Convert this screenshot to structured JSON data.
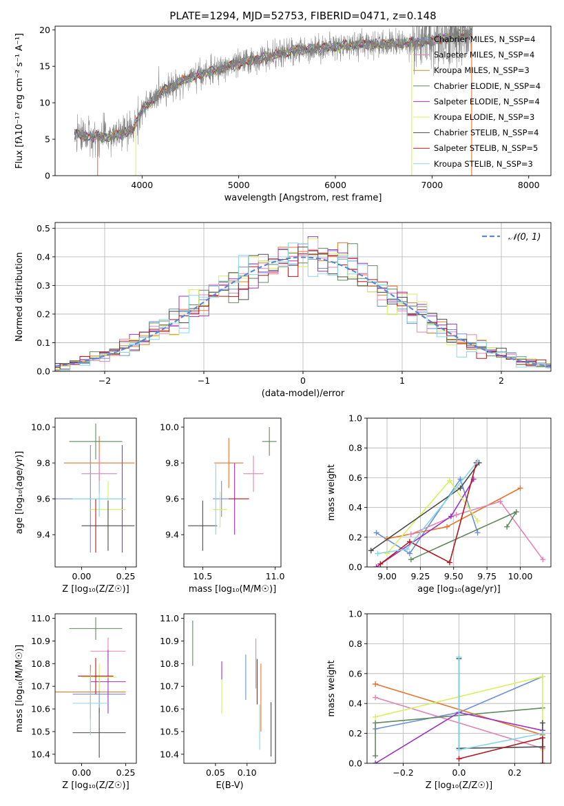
{
  "figure": {
    "title": "PLATE=1294, MJD=52753, FIBERID=0471, z=0.148"
  },
  "colors": {
    "chabrier_miles": "#6a8fd8",
    "salpeter_miles": "#e8742a",
    "kroupa_miles": "#c38a21",
    "chabrier_elodie": "#5f8a5f",
    "salpeter_elodie": "#9b30c2",
    "kroupa_elodie": "#d8ef5e",
    "chabrier_stelib": "#4a4a4a",
    "salpeter_stelib": "#b3151c",
    "kroupa_stelib": "#86d7e6",
    "pink": "#e383b5",
    "data_gray": "#808080"
  },
  "chart_data": [
    {
      "id": "spectrum",
      "type": "line",
      "xlabel": "wavelength [Angstrom, rest frame]",
      "ylabel": "Flux [fλ10⁻¹⁷ erg cm⁻² s⁻¹ A⁻¹]",
      "xlim": [
        3100,
        8230
      ],
      "ylim": [
        0,
        20.5
      ],
      "xticks": [
        4000,
        5000,
        6000,
        7000,
        8000
      ],
      "yticks": [
        0,
        5,
        10,
        15,
        20
      ],
      "legend_position": "top-right",
      "series": [
        {
          "name": "Chabrier MILES, N_SSP=4",
          "color_key": "chabrier_miles"
        },
        {
          "name": "Salpeter MILES, N_SSP=4",
          "color_key": "pink"
        },
        {
          "name": "Kroupa MILES, N_SSP=3",
          "color_key": "kroupa_miles"
        },
        {
          "name": "Chabrier ELODIE, N_SSP=4",
          "color_key": "chabrier_elodie"
        },
        {
          "name": "Salpeter ELODIE, N_SSP=4",
          "color_key": "salpeter_elodie"
        },
        {
          "name": "Kroupa ELODIE, N_SSP=3",
          "color_key": "kroupa_elodie"
        },
        {
          "name": "Chabrier STELIB, N_SSP=4",
          "color_key": "chabrier_stelib"
        },
        {
          "name": "Salpeter STELIB, N_SSP=5",
          "color_key": "salpeter_stelib"
        },
        {
          "name": "Kroupa STELIB, N_SSP=3",
          "color_key": "kroupa_stelib"
        }
      ],
      "continuum": [
        [
          3300,
          5.8
        ],
        [
          3500,
          5.3
        ],
        [
          3700,
          5.4
        ],
        [
          3900,
          6.3
        ],
        [
          4000,
          9.0
        ],
        [
          4200,
          11.5
        ],
        [
          4500,
          13.5
        ],
        [
          4800,
          14.6
        ],
        [
          5000,
          15.4
        ],
        [
          5300,
          16.3
        ],
        [
          5600,
          17.2
        ],
        [
          5900,
          17.6
        ],
        [
          6200,
          18.0
        ],
        [
          6500,
          18.1
        ],
        [
          6800,
          18.2
        ],
        [
          7000,
          18.5
        ],
        [
          7200,
          19.0
        ],
        [
          7400,
          19.5
        ]
      ],
      "model_dropouts": [
        [
          3540,
          "salpeter_miles"
        ],
        [
          3935,
          "kroupa_elodie"
        ],
        [
          6790,
          "kroupa_elodie"
        ],
        [
          7410,
          "salpeter_miles"
        ]
      ]
    },
    {
      "id": "residuals",
      "type": "line",
      "xlabel": "(data-model)/error",
      "ylabel": "Normed distribution",
      "xlim": [
        -2.5,
        2.5
      ],
      "ylim": [
        0,
        0.52
      ],
      "xticks": [
        -2,
        -1,
        0,
        1,
        2
      ],
      "yticks": [
        0.0,
        0.1,
        0.2,
        0.3,
        0.4,
        0.5
      ],
      "grid": true,
      "legend_position": "top-right",
      "reference_label": "𝒩(0, 1)"
    },
    {
      "id": "age_vs_Z",
      "type": "scatter",
      "xlabel": "Z [log₁₀(Z/Z☉)]",
      "ylabel": "age  [log₁₀(age/yr)]",
      "xlim": [
        -0.15,
        0.31
      ],
      "ylim": [
        9.22,
        10.05
      ],
      "xticks": [
        0.0,
        0.25
      ],
      "yticks": [
        9.4,
        9.6,
        9.8,
        10.0
      ],
      "points": [
        {
          "color_key": "chabrier_miles",
          "x": 0.05,
          "xerr": 0.2,
          "y": 9.6,
          "yerr": 0.3
        },
        {
          "color_key": "salpeter_miles",
          "x": 0.1,
          "xerr": 0.2,
          "y": 9.8,
          "yerr": 0.15
        },
        {
          "color_key": "chabrier_elodie",
          "x": 0.08,
          "xerr": 0.15,
          "y": 9.92,
          "yerr": 0.1
        },
        {
          "color_key": "pink",
          "x": 0.1,
          "xerr": 0.1,
          "y": 9.74,
          "yerr": 0.11
        },
        {
          "color_key": "salpeter_elodie",
          "x": 0.23,
          "xerr": 0.0,
          "y": 9.6,
          "yerr": 0.3
        },
        {
          "color_key": "kroupa_elodie",
          "x": 0.15,
          "xerr": 0.1,
          "y": 9.54,
          "yerr": 0.16
        },
        {
          "color_key": "chabrier_stelib",
          "x": 0.15,
          "xerr": 0.15,
          "y": 9.45,
          "yerr": 0.14
        },
        {
          "color_key": "salpeter_stelib",
          "x": 0.08,
          "xerr": 0.0,
          "y": 9.45,
          "yerr": 0.15
        },
        {
          "color_key": "kroupa_stelib",
          "x": 0.1,
          "xerr": 0.15,
          "y": 9.6,
          "yerr": 0.1
        }
      ]
    },
    {
      "id": "age_vs_mass",
      "type": "scatter",
      "xlabel": "mass [log₁₀(M/M☉)]",
      "ylabel": "",
      "xlim": [
        10.37,
        11.04
      ],
      "ylim": [
        9.22,
        10.05
      ],
      "xticks": [
        10.5,
        11.0
      ],
      "xticklabels": [
        "10.5",
        "11.0"
      ],
      "yticks": [
        9.4,
        9.6,
        9.8,
        10.0
      ],
      "points": [
        {
          "color_key": "chabrier_miles",
          "x": 10.63,
          "xerr": 0.06,
          "y": 9.6,
          "yerr": 0.1
        },
        {
          "color_key": "salpeter_miles",
          "x": 10.68,
          "xerr": 0.1,
          "y": 9.8,
          "yerr": 0.14
        },
        {
          "color_key": "chabrier_elodie",
          "x": 10.96,
          "xerr": 0.05,
          "y": 9.92,
          "yerr": 0.08
        },
        {
          "color_key": "pink",
          "x": 10.85,
          "xerr": 0.07,
          "y": 9.74,
          "yerr": 0.1
        },
        {
          "color_key": "salpeter_elodie",
          "x": 10.72,
          "xerr": 0.0,
          "y": 9.6,
          "yerr": 0.2
        },
        {
          "color_key": "kroupa_elodie",
          "x": 10.62,
          "xerr": 0.05,
          "y": 9.54,
          "yerr": 0.1
        },
        {
          "color_key": "chabrier_stelib",
          "x": 10.5,
          "xerr": 0.1,
          "y": 9.45,
          "yerr": 0.14
        },
        {
          "color_key": "salpeter_stelib",
          "x": 10.75,
          "xerr": 0.07,
          "y": 9.6,
          "yerr": 0.0
        },
        {
          "color_key": "kroupa_stelib",
          "x": 10.59,
          "xerr": 0.0,
          "y": 9.6,
          "yerr": 0.2
        }
      ]
    },
    {
      "id": "weight_vs_age",
      "type": "line",
      "xlabel": "age  [log₁₀(age/yr)]",
      "ylabel": "mass weight",
      "xlim": [
        8.85,
        10.23
      ],
      "ylim": [
        0,
        1.0
      ],
      "xticks": [
        9.0,
        9.25,
        9.5,
        9.75,
        10.0
      ],
      "xticklabels": [
        "9.00",
        "9.25",
        "9.50",
        "9.75",
        "10.00"
      ],
      "yticks": [
        0.0,
        0.2,
        0.4,
        0.6,
        0.8,
        1.0
      ],
      "grid": true,
      "series": [
        {
          "color_key": "chabrier_miles",
          "x": [
            8.92,
            9.17,
            9.55,
            9.68
          ],
          "y": [
            0.23,
            0.09,
            0.59,
            0.23
          ]
        },
        {
          "color_key": "salpeter_miles",
          "x": [
            9.0,
            9.45,
            10.0
          ],
          "y": [
            0.19,
            0.27,
            0.53
          ]
        },
        {
          "color_key": "pink",
          "x": [
            9.18,
            9.52,
            9.85,
            10.17
          ],
          "y": [
            0.22,
            0.35,
            0.44,
            0.05
          ]
        },
        {
          "color_key": "chabrier_elodie",
          "x": [
            9.18,
            9.97,
            9.9
          ],
          "y": [
            0.05,
            0.37,
            0.27
          ]
        },
        {
          "color_key": "salpeter_elodie",
          "x": [
            8.92,
            9.48,
            9.65
          ],
          "y": [
            0.0,
            0.34,
            0.59
          ]
        },
        {
          "color_key": "kroupa_elodie",
          "x": [
            9.0,
            9.47,
            9.68
          ],
          "y": [
            0.09,
            0.58,
            0.31
          ]
        },
        {
          "color_key": "chabrier_stelib",
          "x": [
            8.88,
            9.55,
            9.69
          ],
          "y": [
            0.11,
            0.53,
            0.7
          ]
        },
        {
          "color_key": "salpeter_stelib",
          "x": [
            8.95,
            9.17,
            9.47,
            9.67
          ],
          "y": [
            0.02,
            0.17,
            0.03,
            0.7
          ]
        },
        {
          "color_key": "kroupa_stelib",
          "x": [
            8.93,
            9.15,
            9.68
          ],
          "y": [
            0.09,
            0.12,
            0.71
          ]
        }
      ]
    },
    {
      "id": "mass_vs_Z",
      "type": "scatter",
      "xlabel": "Z [log₁₀(Z/Z☉)]",
      "ylabel": "mass [log₁₀(M/M☉)]",
      "xlim": [
        -0.15,
        0.31
      ],
      "ylim": [
        10.36,
        11.02
      ],
      "xticks": [
        0.0,
        0.25
      ],
      "yticks": [
        10.4,
        10.5,
        10.6,
        10.7,
        10.8,
        10.9,
        11.0
      ],
      "points": [
        {
          "color_key": "chabrier_miles",
          "x": 0.1,
          "xerr": 0.15,
          "y": 10.665,
          "yerr": 0.08
        },
        {
          "color_key": "salpeter_miles",
          "x": 0.05,
          "xerr": 0.2,
          "y": 10.675,
          "yerr": 0.12
        },
        {
          "color_key": "chabrier_elodie",
          "x": 0.08,
          "xerr": 0.15,
          "y": 10.955,
          "yerr": 0.05
        },
        {
          "color_key": "pink",
          "x": 0.15,
          "xerr": 0.1,
          "y": 10.855,
          "yerr": 0.06
        },
        {
          "color_key": "salpeter_elodie",
          "x": 0.15,
          "xerr": 0.1,
          "y": 10.72,
          "yerr": 0.14
        },
        {
          "color_key": "kroupa_elodie",
          "x": 0.1,
          "xerr": 0.1,
          "y": 10.74,
          "yerr": 0.06
        },
        {
          "color_key": "chabrier_stelib",
          "x": 0.1,
          "xerr": 0.15,
          "y": 10.495,
          "yerr": 0.11
        },
        {
          "color_key": "salpeter_stelib",
          "x": 0.08,
          "xerr": 0.1,
          "y": 10.745,
          "yerr": 0.08
        },
        {
          "color_key": "kroupa_stelib",
          "x": 0.05,
          "xerr": 0.1,
          "y": 10.625,
          "yerr": 0.14
        }
      ]
    },
    {
      "id": "mass_vs_ebv",
      "type": "scatter",
      "xlabel": "E(B-V)",
      "ylabel": "",
      "xlim": [
        0.0,
        0.145
      ],
      "ylim": [
        10.36,
        11.02
      ],
      "xticks": [
        0.05,
        0.1
      ],
      "xticklabels": [
        "0.05",
        "0.10"
      ],
      "yticks": [
        10.4,
        10.5,
        10.6,
        10.7,
        10.8,
        10.9,
        11.0
      ],
      "points": [
        {
          "color_key": "chabrier_elodie",
          "x": 0.014,
          "yerr": 0.1,
          "y": 10.89
        },
        {
          "color_key": "kroupa_elodie",
          "x": 0.06,
          "yerr": 0.08,
          "y": 10.66
        },
        {
          "color_key": "salpeter_elodie",
          "x": 0.06,
          "yerr": 0.04,
          "y": 10.77
        },
        {
          "color_key": "chabrier_miles",
          "x": 0.098,
          "yerr": 0.1,
          "y": 10.74
        },
        {
          "color_key": "pink",
          "x": 0.114,
          "yerr": 0.11,
          "y": 10.8
        },
        {
          "color_key": "salpeter_stelib",
          "x": 0.116,
          "yerr": 0.1,
          "y": 10.72
        },
        {
          "color_key": "salpeter_miles",
          "x": 0.122,
          "yerr": 0.15,
          "y": 10.65
        },
        {
          "color_key": "kroupa_stelib",
          "x": 0.12,
          "yerr": 0.1,
          "y": 10.52
        },
        {
          "color_key": "chabrier_stelib",
          "x": 0.138,
          "yerr": 0.12,
          "y": 10.51
        }
      ]
    },
    {
      "id": "weight_vs_Z",
      "type": "line",
      "xlabel": "Z [log₁₀(Z/Z☉)]",
      "ylabel": "mass weight",
      "xlim": [
        -0.33,
        0.33
      ],
      "ylim": [
        0,
        1.0
      ],
      "xticks": [
        -0.2,
        0.0,
        0.2
      ],
      "xticklabels": [
        "−0.2",
        "0.0",
        "0.2"
      ],
      "yticks": [
        0.0,
        0.2,
        0.4,
        0.6,
        0.8,
        1.0
      ],
      "grid": true,
      "series": [
        {
          "color_key": "chabrier_miles",
          "x": [
            -0.3,
            0.0,
            0.3
          ],
          "y": [
            0.23,
            0.34,
            0.58
          ]
        },
        {
          "color_key": "salpeter_miles",
          "x": [
            -0.3,
            0.3
          ],
          "y": [
            0.53,
            0.19
          ]
        },
        {
          "color_key": "pink",
          "x": [
            -0.3,
            0.3
          ],
          "y": [
            0.44,
            0.1
          ]
        },
        {
          "color_key": "chabrier_elodie",
          "x": [
            -0.3,
            -0.3,
            0.3
          ],
          "y": [
            0.05,
            0.27,
            0.37
          ]
        },
        {
          "color_key": "salpeter_elodie",
          "x": [
            -0.3,
            0.0,
            0.3
          ],
          "y": [
            0.0,
            0.34,
            0.22
          ]
        },
        {
          "color_key": "kroupa_elodie",
          "x": [
            -0.3,
            0.3,
            0.3
          ],
          "y": [
            0.31,
            0.58,
            0.09
          ]
        },
        {
          "color_key": "chabrier_stelib",
          "x": [
            0.0,
            0.0,
            0.3,
            0.3
          ],
          "y": [
            0.7,
            0.1,
            0.11,
            0.27
          ]
        },
        {
          "color_key": "salpeter_stelib",
          "x": [
            0.0,
            0.3,
            0.3
          ],
          "y": [
            0.03,
            0.17,
            0.0
          ]
        },
        {
          "color_key": "kroupa_stelib",
          "x": [
            0.0,
            0.0,
            0.3
          ],
          "y": [
            0.71,
            0.09,
            0.2
          ]
        }
      ]
    }
  ]
}
